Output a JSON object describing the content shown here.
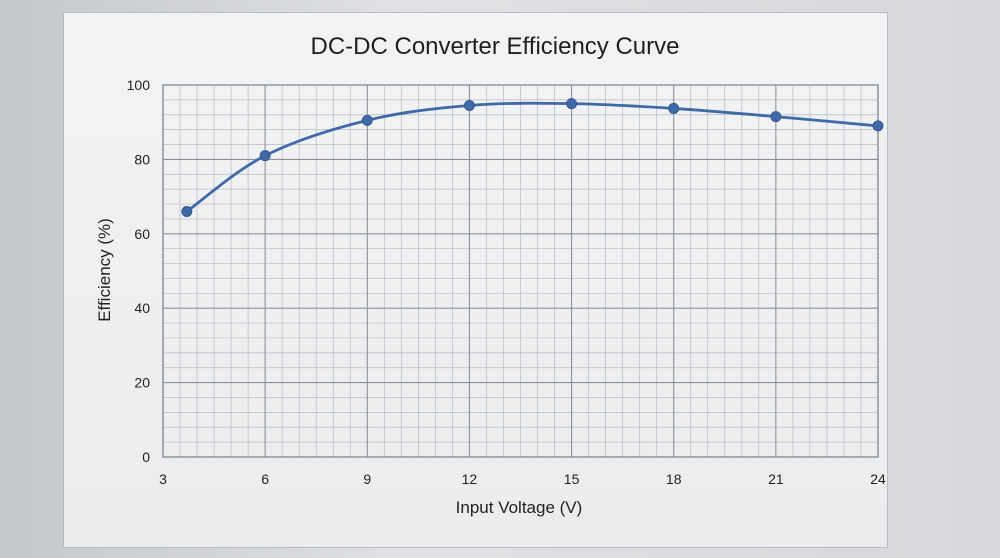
{
  "chart_data": {
    "type": "line",
    "title": "DC-DC Converter Efficiency Curve",
    "xlabel": "Input Voltage (V)",
    "ylabel": "Efficiency (%)",
    "xlim": [
      3,
      24
    ],
    "ylim": [
      0,
      100
    ],
    "x_ticks": [
      3,
      6,
      9,
      12,
      15,
      18,
      21,
      24
    ],
    "y_ticks": [
      0,
      20,
      40,
      60,
      80,
      100
    ],
    "grid": true,
    "smooth": true,
    "series": [
      {
        "x": [
          3.7,
          6,
          9,
          12,
          15,
          18,
          21,
          24
        ],
        "y": [
          66,
          81,
          90.5,
          94.5,
          95,
          93.7,
          91.5,
          89
        ],
        "color": "#3f6aa8"
      }
    ]
  }
}
